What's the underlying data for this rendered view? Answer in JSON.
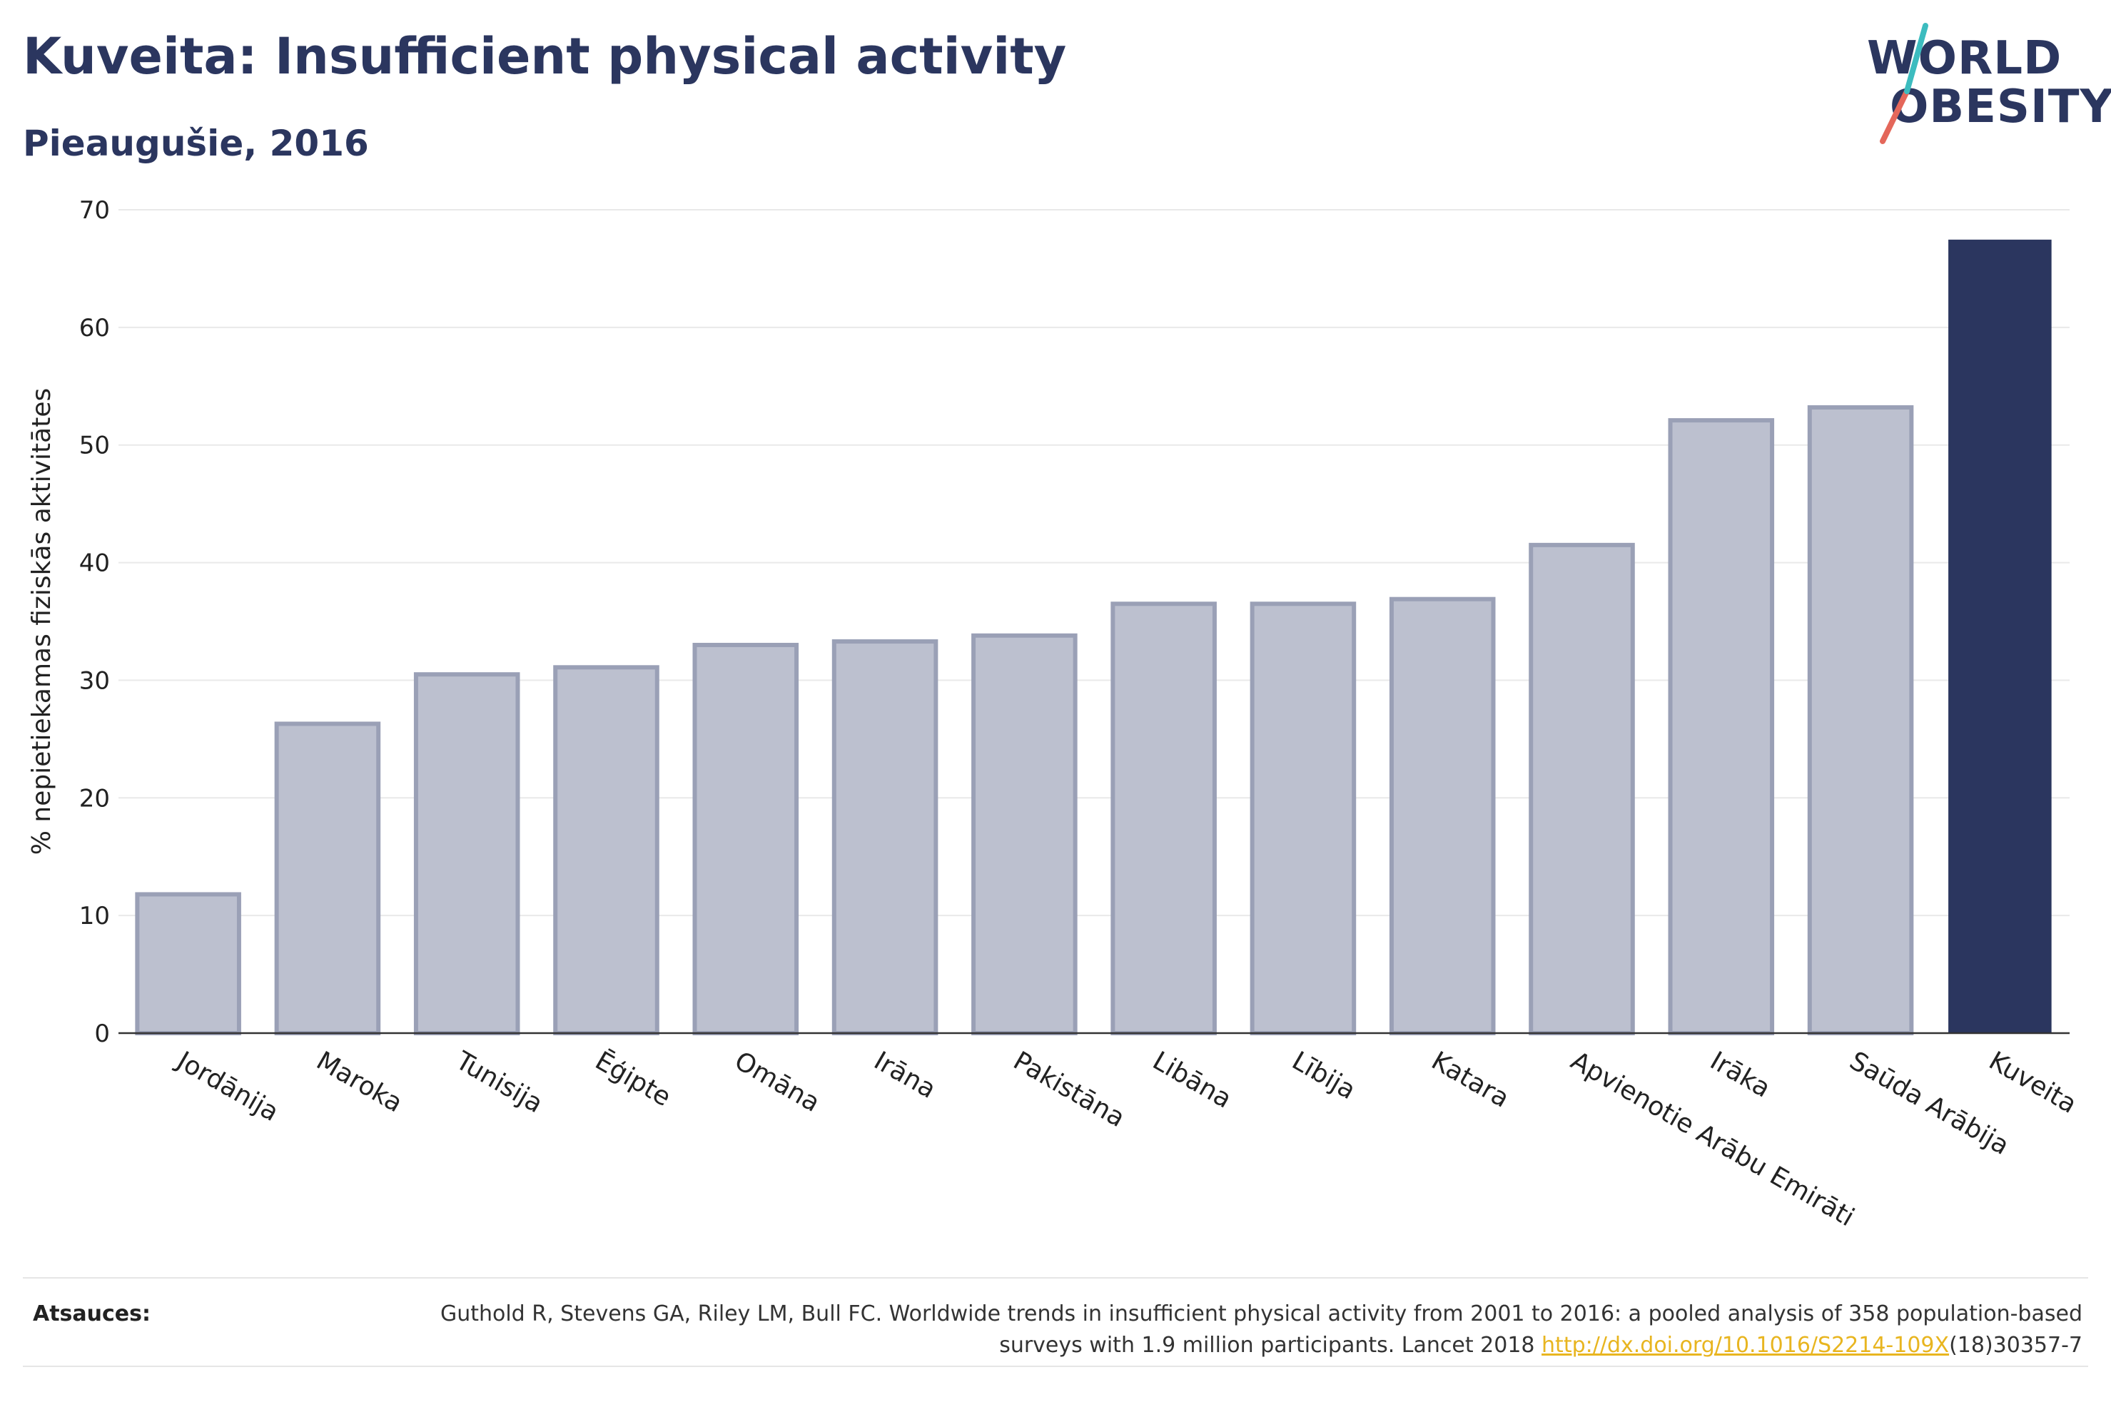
{
  "title": "Kuveita: Insufficient physical activity",
  "subtitle": "Pieaugušie, 2016",
  "logo": {
    "line1": "WORLD",
    "line2": "OBESITY"
  },
  "colors": {
    "highlight": "#2b365f",
    "other_fill": "#bcc0cf",
    "other_stroke": "#9aa0b6",
    "link": "#e8b520",
    "grid": "#e9e9e9"
  },
  "footer": {
    "label": "Atsauces:",
    "text_before": "Guthold R, Stevens GA, Riley LM, Bull FC. Worldwide trends in insufficient physical activity from 2001 to 2016: a pooled analysis of 358 population-based surveys with 1.9 million participants. Lancet 2018 ",
    "link": "http://dx.doi.org/10.1016/S2214-109X",
    "text_after": "(18)30357-7"
  },
  "chart_data": {
    "type": "bar",
    "categories": [
      "Jordānija",
      "Maroka",
      "Tunisija",
      "Ēģipte",
      "Omāna",
      "Irāna",
      "Pakistāna",
      "Libāna",
      "Lībija",
      "Katara",
      "Apvienotie Arābu Emirāti",
      "Irāka",
      "Saūda Arābija",
      "Kuveita"
    ],
    "values": [
      11.8,
      26.3,
      30.5,
      31.1,
      33.0,
      33.3,
      33.8,
      36.5,
      36.5,
      36.9,
      41.5,
      52.1,
      53.2,
      67.4
    ],
    "highlight": "Kuveita",
    "ylabel": "% nepietiekamas fiziskās aktivitātes",
    "xlabel": "",
    "ylim": [
      0,
      70
    ],
    "yticks": [
      0,
      10,
      20,
      30,
      40,
      50,
      60,
      70
    ],
    "grid": true
  }
}
